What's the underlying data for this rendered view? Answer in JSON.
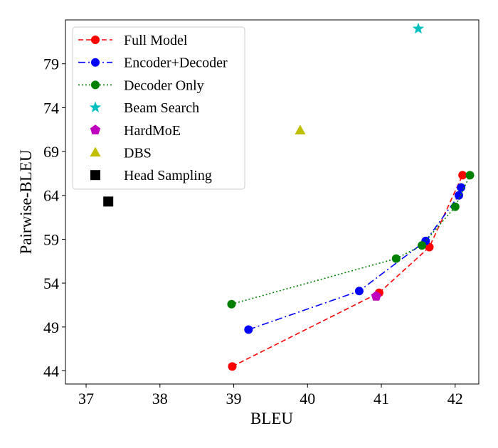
{
  "chart_data": {
    "type": "scatter",
    "title": "",
    "xlabel": "BLEU",
    "ylabel": "Pairwise-BLEU",
    "xlim": [
      36.72,
      42.32
    ],
    "ylim": [
      42.5,
      84.0
    ],
    "xticks": [
      37,
      38,
      39,
      40,
      41,
      42
    ],
    "yticks": [
      44,
      49,
      54,
      59,
      64,
      69,
      74,
      79
    ],
    "grid": false,
    "legend_position": "top-left",
    "colors": {
      "full_model": "#ff0000",
      "encoder_decoder": "#0000ff",
      "decoder_only": "#008000",
      "beam_search": "#00bfbf",
      "hardmoe": "#bf00bf",
      "dbs": "#bfbf00",
      "head_sampling": "#000000"
    },
    "series": [
      {
        "key": "full_model",
        "name": "Full Model",
        "style": "dashed-line-circle",
        "x": [
          38.98,
          40.97,
          41.65,
          42.1
        ],
        "y": [
          44.5,
          52.9,
          58.1,
          66.3
        ]
      },
      {
        "key": "encoder_decoder",
        "name": "Encoder+Decoder",
        "style": "dashdot-line-circle",
        "x": [
          39.2,
          40.7,
          41.6,
          42.05,
          42.08
        ],
        "y": [
          48.7,
          53.1,
          58.8,
          64.0,
          64.9
        ]
      },
      {
        "key": "decoder_only",
        "name": "Decoder Only",
        "style": "dotted-line-circle",
        "x": [
          38.97,
          41.2,
          41.55,
          42.0,
          42.2
        ],
        "y": [
          51.6,
          56.8,
          58.3,
          62.7,
          66.3
        ]
      },
      {
        "key": "beam_search",
        "name": "Beam Search",
        "style": "star",
        "x": [
          41.5
        ],
        "y": [
          83.0
        ]
      },
      {
        "key": "hardmoe",
        "name": "HardMoE",
        "style": "pentagon",
        "x": [
          40.93
        ],
        "y": [
          52.5
        ]
      },
      {
        "key": "dbs",
        "name": "DBS",
        "style": "triangle",
        "x": [
          39.9
        ],
        "y": [
          71.4
        ]
      },
      {
        "key": "head_sampling",
        "name": "Head Sampling",
        "style": "square",
        "x": [
          37.3
        ],
        "y": [
          63.3
        ]
      }
    ]
  }
}
